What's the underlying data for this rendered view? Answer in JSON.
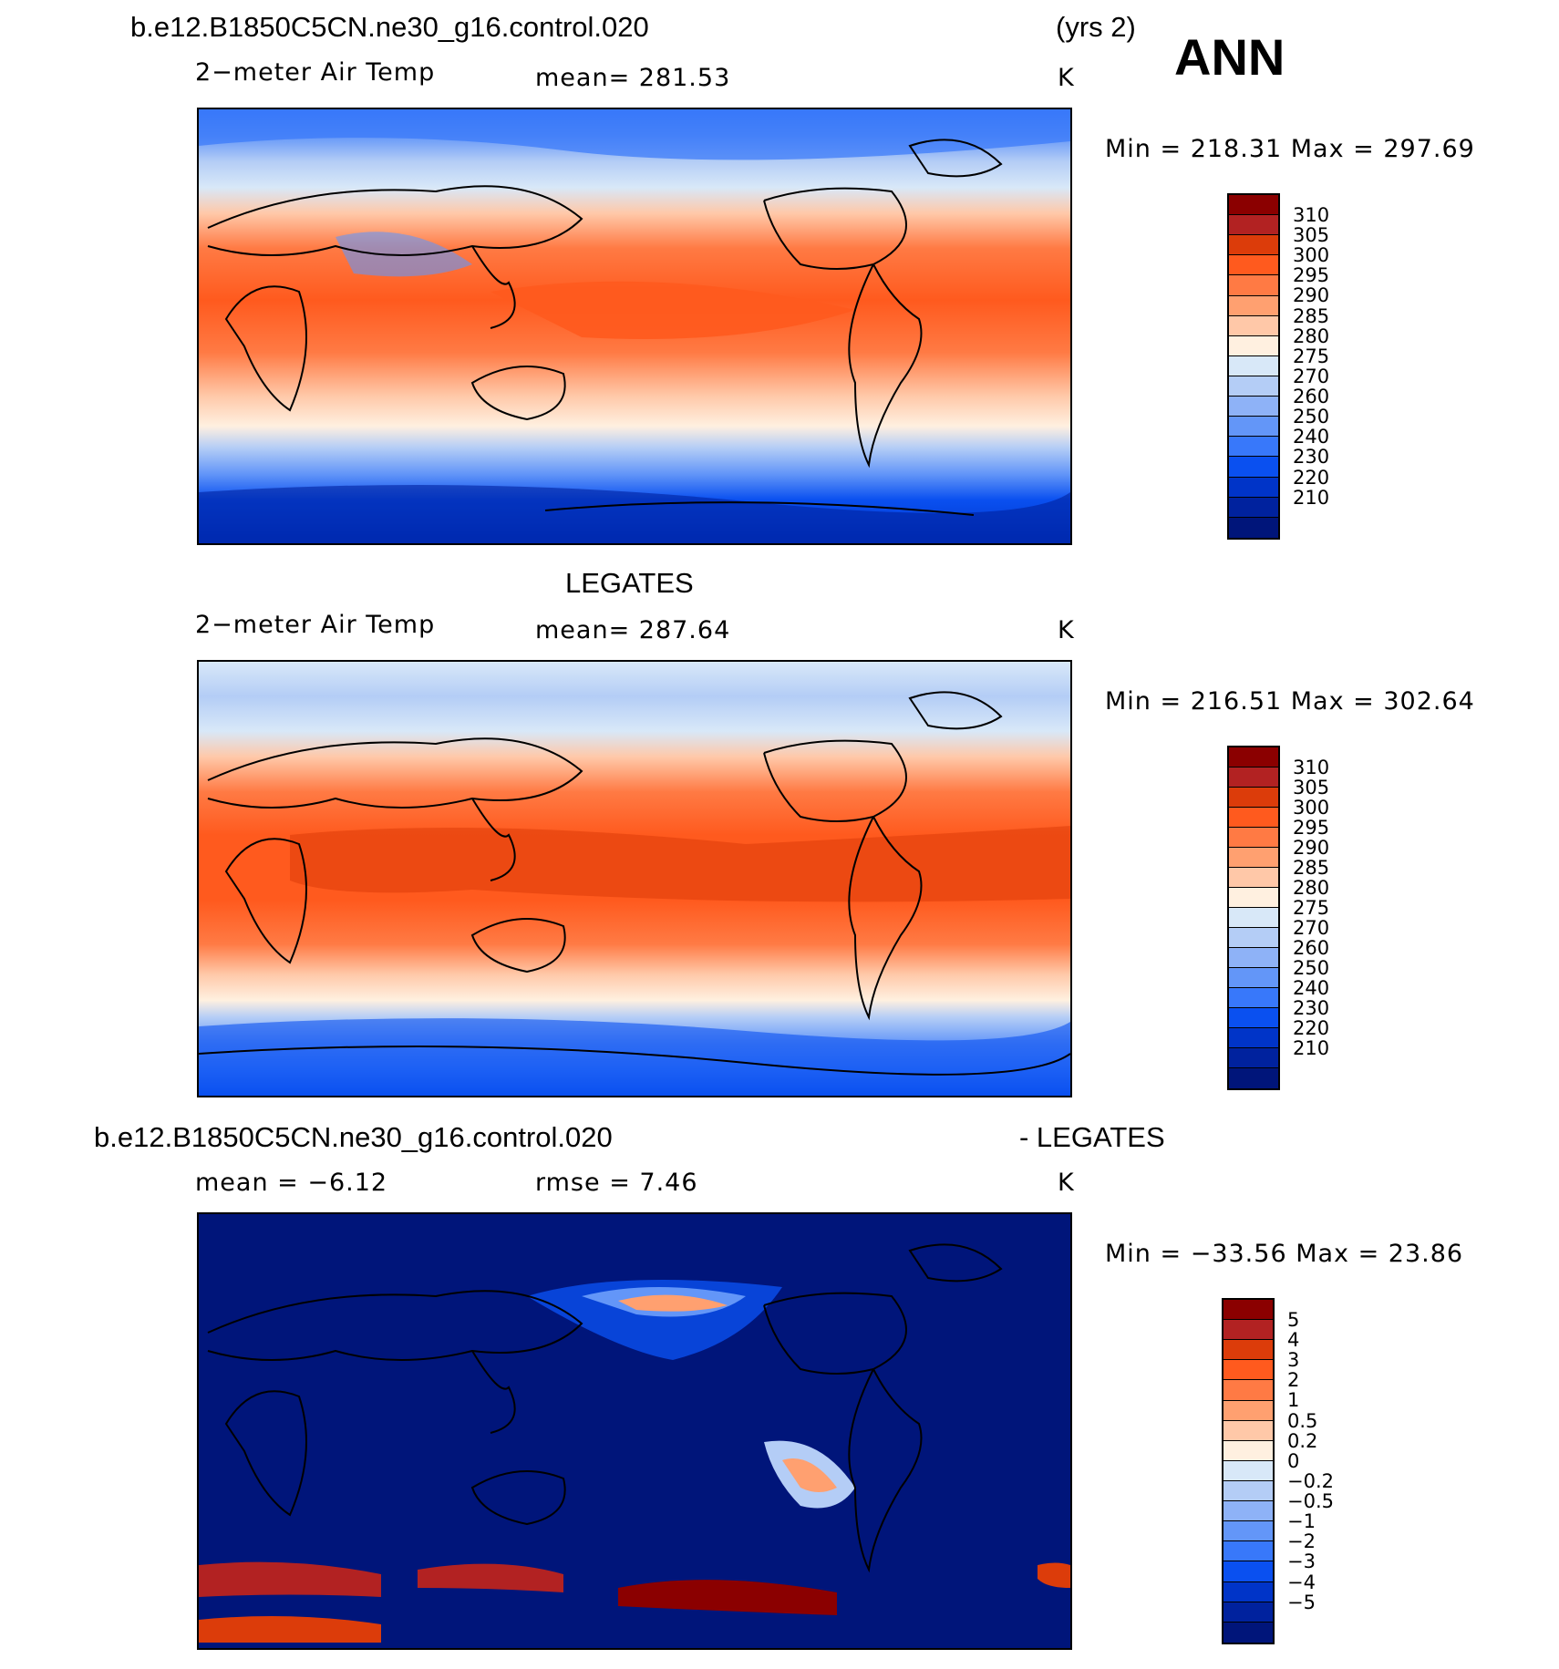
{
  "header": {
    "case_name": "b.e12.B1850C5CN.ne30_g16.control.020",
    "years": "(yrs 2)",
    "season": "ANN"
  },
  "colors": {
    "temp_levels": [
      "#8b0000",
      "#b22222",
      "#dc3c0a",
      "#ff5a1e",
      "#ff7a44",
      "#ffa070",
      "#ffc8a8",
      "#fff0e0",
      "#d8e8f8",
      "#b4cdf6",
      "#8eb2f7",
      "#6396f8",
      "#3878fa",
      "#0a50f0",
      "#0034c8",
      "#00229e",
      "#00157a"
    ],
    "diff_levels": [
      "#8b0000",
      "#b22222",
      "#dc3c0a",
      "#ff5a1e",
      "#ff7a44",
      "#ffa070",
      "#ffc8a8",
      "#fff0e0",
      "#d8e8f8",
      "#b4cdf6",
      "#8eb2f7",
      "#6396f8",
      "#3878fa",
      "#0a50f0",
      "#0034c8",
      "#00229e",
      "#00157a"
    ]
  },
  "panels": [
    {
      "heading": "",
      "heading_right": "",
      "variable": "2−meter Air Temp",
      "stat1": "mean=  281.53",
      "stat2": "",
      "units": "K",
      "minmax": "Min  =  218.31  Max  =  297.69",
      "colorbar_labels": [
        "310",
        "305",
        "300",
        "295",
        "290",
        "285",
        "280",
        "275",
        "270",
        "260",
        "250",
        "240",
        "230",
        "220",
        "210"
      ]
    },
    {
      "heading": "LEGATES",
      "heading_right": "",
      "variable": "2−meter Air Temp",
      "stat1": "mean=  287.64",
      "stat2": "",
      "units": "K",
      "minmax": "Min  =  216.51  Max  =  302.64",
      "colorbar_labels": [
        "310",
        "305",
        "300",
        "295",
        "290",
        "285",
        "280",
        "275",
        "270",
        "260",
        "250",
        "240",
        "230",
        "220",
        "210"
      ]
    },
    {
      "heading": "b.e12.B1850C5CN.ne30_g16.control.020",
      "heading_right": "- LEGATES",
      "variable": "mean  =    −6.12",
      "stat1": "rmse  =      7.46",
      "stat2": "",
      "units": "K",
      "minmax": "Min  =  −33.56  Max  =    23.86",
      "colorbar_labels": [
        "5",
        "4",
        "3",
        "2",
        "1",
        "0.5",
        "0.2",
        "0",
        "−0.2",
        "−0.5",
        "−1",
        "−2",
        "−3",
        "−4",
        "−5"
      ]
    }
  ]
}
